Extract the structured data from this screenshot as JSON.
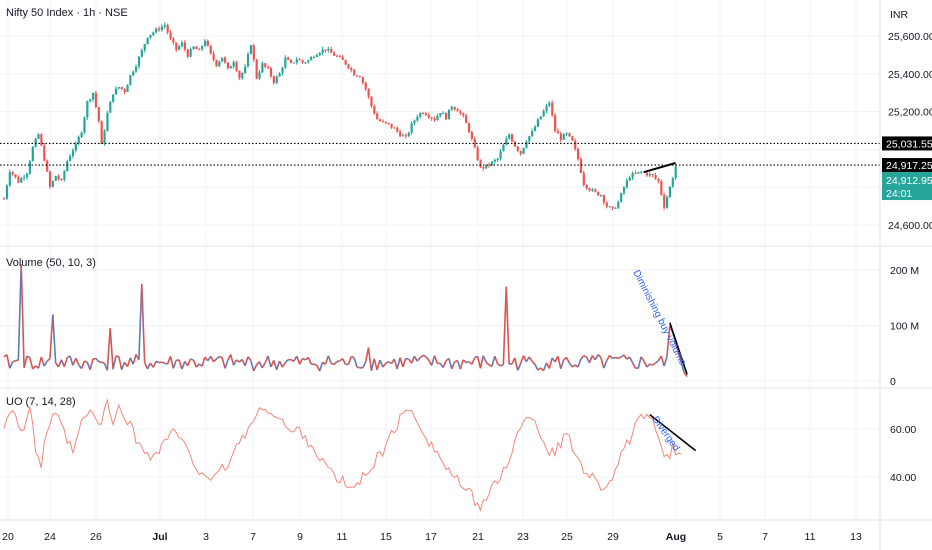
{
  "header": {
    "title": "Nifty 50 Index · 1h · NSE",
    "currency": "INR"
  },
  "colors": {
    "up": "#26a69a",
    "down": "#ef5350",
    "volume_up": "#5b7bbf",
    "volume_down": "#d9534f",
    "uo_line": "#f4877b",
    "annotation_text": "#2962ff",
    "trendline": "#000000",
    "last_price_tag": "#26a69a",
    "level_tag": "#000000",
    "grid": "#f0f3fa"
  },
  "chart_data": [
    {
      "type": "candlestick",
      "pane": "price",
      "ylim": [
        24500,
        25720
      ],
      "yticks": [
        25600,
        25400,
        25200,
        24600
      ],
      "ytick_labels": [
        "25,600.00",
        "25,400.00",
        "25,200.00",
        "24,600.00"
      ],
      "x_ticks": [
        "20",
        "24",
        "26",
        "Jul",
        "3",
        "7",
        "9",
        "11",
        "15",
        "17",
        "21",
        "23",
        "25",
        "29",
        "Aug",
        "5",
        "7",
        "11",
        "13"
      ],
      "close_path": [
        [
          0,
          24740
        ],
        [
          2,
          24890
        ],
        [
          5,
          24830
        ],
        [
          8,
          24880
        ],
        [
          10,
          25010
        ],
        [
          12,
          25080
        ],
        [
          14,
          24950
        ],
        [
          16,
          24800
        ],
        [
          18,
          24860
        ],
        [
          20,
          24830
        ],
        [
          22,
          24940
        ],
        [
          24,
          25000
        ],
        [
          25,
          25020
        ],
        [
          27,
          25100
        ],
        [
          29,
          25250
        ],
        [
          31,
          25300
        ],
        [
          33,
          25150
        ],
        [
          34,
          25020
        ],
        [
          36,
          25190
        ],
        [
          38,
          25300
        ],
        [
          40,
          25330
        ],
        [
          42,
          25310
        ],
        [
          44,
          25390
        ],
        [
          46,
          25450
        ],
        [
          48,
          25520
        ],
        [
          50,
          25600
        ],
        [
          52,
          25620
        ],
        [
          54,
          25640
        ],
        [
          56,
          25660
        ],
        [
          58,
          25580
        ],
        [
          60,
          25530
        ],
        [
          62,
          25560
        ],
        [
          64,
          25500
        ],
        [
          66,
          25540
        ],
        [
          68,
          25520
        ],
        [
          70,
          25580
        ],
        [
          72,
          25500
        ],
        [
          74,
          25450
        ],
        [
          76,
          25490
        ],
        [
          78,
          25420
        ],
        [
          80,
          25470
        ],
        [
          82,
          25380
        ],
        [
          84,
          25430
        ],
        [
          86,
          25560
        ],
        [
          88,
          25380
        ],
        [
          90,
          25450
        ],
        [
          92,
          25420
        ],
        [
          94,
          25360
        ],
        [
          96,
          25400
        ],
        [
          98,
          25480
        ],
        [
          100,
          25450
        ],
        [
          102,
          25480
        ],
        [
          104,
          25460
        ],
        [
          106,
          25470
        ],
        [
          108,
          25500
        ],
        [
          110,
          25520
        ],
        [
          112,
          25530
        ],
        [
          114,
          25510
        ],
        [
          116,
          25490
        ],
        [
          118,
          25470
        ],
        [
          120,
          25440
        ],
        [
          122,
          25400
        ],
        [
          124,
          25390
        ],
        [
          126,
          25320
        ],
        [
          128,
          25230
        ],
        [
          130,
          25160
        ],
        [
          132,
          25140
        ],
        [
          134,
          25130
        ],
        [
          136,
          25110
        ],
        [
          138,
          25080
        ],
        [
          140,
          25060
        ],
        [
          142,
          25130
        ],
        [
          144,
          25180
        ],
        [
          146,
          25200
        ],
        [
          148,
          25180
        ],
        [
          150,
          25160
        ],
        [
          152,
          25200
        ],
        [
          154,
          25170
        ],
        [
          156,
          25230
        ],
        [
          158,
          25210
        ],
        [
          160,
          25170
        ],
        [
          162,
          25100
        ],
        [
          164,
          25000
        ],
        [
          166,
          24900
        ],
        [
          168,
          24910
        ],
        [
          170,
          24930
        ],
        [
          172,
          24950
        ],
        [
          174,
          25020
        ],
        [
          176,
          25080
        ],
        [
          178,
          25020
        ],
        [
          180,
          24980
        ],
        [
          182,
          25050
        ],
        [
          184,
          25090
        ],
        [
          186,
          25150
        ],
        [
          188,
          25200
        ],
        [
          190,
          25250
        ],
        [
          192,
          25100
        ],
        [
          194,
          25060
        ],
        [
          196,
          25080
        ],
        [
          198,
          25040
        ],
        [
          200,
          24950
        ],
        [
          202,
          24820
        ],
        [
          204,
          24790
        ],
        [
          206,
          24770
        ],
        [
          208,
          24760
        ],
        [
          210,
          24700
        ],
        [
          212,
          24680
        ],
        [
          214,
          24720
        ],
        [
          216,
          24800
        ],
        [
          218,
          24860
        ],
        [
          220,
          24870
        ],
        [
          222,
          24880
        ],
        [
          224,
          24870
        ],
        [
          226,
          24860
        ],
        [
          228,
          24830
        ],
        [
          230,
          24700
        ],
        [
          232,
          24800
        ],
        [
          234,
          24910
        ]
      ],
      "hlines": [
        25031.55,
        24917.25
      ],
      "trendline": [
        [
          223,
          24880
        ],
        [
          234,
          24928
        ]
      ],
      "last_price": "24,912.95",
      "countdown": "24:01",
      "level_tags": [
        "25,031.55",
        "24,917.25"
      ]
    },
    {
      "type": "bar",
      "pane": "volume",
      "title": "Volume (50, 10, 3)",
      "ylim": [
        0,
        230
      ],
      "yticks": [
        200,
        100,
        0
      ],
      "ytick_labels": [
        "200 M",
        "100 M",
        "0"
      ],
      "spikes": [
        [
          6,
          210
        ],
        [
          17,
          120
        ],
        [
          37,
          95
        ],
        [
          48,
          175
        ],
        [
          127,
          60
        ],
        [
          175,
          170
        ],
        [
          232,
          100
        ]
      ],
      "trendline": [
        [
          232,
          105
        ],
        [
          238,
          12
        ]
      ],
      "annotation": "Diminishing buy volume"
    },
    {
      "type": "line",
      "pane": "uo",
      "title": "UO (7, 14, 28)",
      "ylim": [
        25,
        75
      ],
      "yticks": [
        60,
        40
      ],
      "ytick_labels": [
        "60.00",
        "40.00"
      ],
      "path": [
        [
          0,
          62
        ],
        [
          3,
          70
        ],
        [
          6,
          58
        ],
        [
          9,
          68
        ],
        [
          11,
          52
        ],
        [
          13,
          45
        ],
        [
          15,
          60
        ],
        [
          18,
          66
        ],
        [
          21,
          58
        ],
        [
          24,
          50
        ],
        [
          27,
          62
        ],
        [
          30,
          68
        ],
        [
          33,
          61
        ],
        [
          36,
          70
        ],
        [
          38,
          63
        ],
        [
          40,
          68
        ],
        [
          42,
          66
        ],
        [
          44,
          62
        ],
        [
          46,
          55
        ],
        [
          49,
          52
        ],
        [
          52,
          48
        ],
        [
          55,
          53
        ],
        [
          58,
          59
        ],
        [
          61,
          57
        ],
        [
          64,
          50
        ],
        [
          67,
          44
        ],
        [
          70,
          42
        ],
        [
          73,
          38
        ],
        [
          76,
          43
        ],
        [
          79,
          47
        ],
        [
          82,
          55
        ],
        [
          85,
          60
        ],
        [
          88,
          65
        ],
        [
          91,
          70
        ],
        [
          94,
          66
        ],
        [
          97,
          63
        ],
        [
          100,
          58
        ],
        [
          103,
          60
        ],
        [
          106,
          55
        ],
        [
          109,
          50
        ],
        [
          112,
          45
        ],
        [
          115,
          40
        ],
        [
          118,
          38
        ],
        [
          121,
          35
        ],
        [
          124,
          38
        ],
        [
          127,
          43
        ],
        [
          130,
          48
        ],
        [
          133,
          52
        ],
        [
          136,
          60
        ],
        [
          139,
          66
        ],
        [
          142,
          68
        ],
        [
          145,
          62
        ],
        [
          148,
          55
        ],
        [
          151,
          50
        ],
        [
          154,
          44
        ],
        [
          157,
          40
        ],
        [
          160,
          35
        ],
        [
          163,
          32
        ],
        [
          166,
          28
        ],
        [
          169,
          33
        ],
        [
          172,
          38
        ],
        [
          175,
          45
        ],
        [
          178,
          55
        ],
        [
          181,
          62
        ],
        [
          184,
          66
        ],
        [
          187,
          58
        ],
        [
          190,
          50
        ],
        [
          193,
          52
        ],
        [
          196,
          58
        ],
        [
          199,
          50
        ],
        [
          202,
          44
        ],
        [
          205,
          40
        ],
        [
          208,
          36
        ],
        [
          211,
          38
        ],
        [
          214,
          46
        ],
        [
          217,
          53
        ],
        [
          220,
          61
        ],
        [
          223,
          65
        ],
        [
          226,
          62
        ],
        [
          229,
          55
        ],
        [
          231,
          47
        ],
        [
          233,
          52
        ],
        [
          236,
          49
        ]
      ],
      "trendline": [
        [
          225,
          66
        ],
        [
          241,
          51
        ]
      ],
      "annotation": "Diverged"
    }
  ]
}
